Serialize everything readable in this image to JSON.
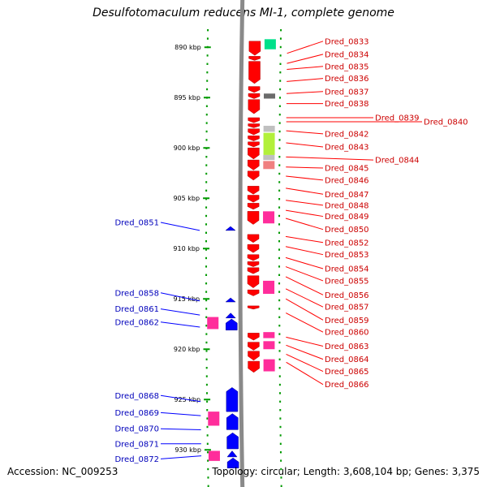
{
  "title": "Desulfotomaculum reducens MI-1, complete genome",
  "footer": {
    "accession": "Accession: NC_009253",
    "summary": "Topology: circular; Length: 3,608,104 bp; Genes: 3,375"
  },
  "colors": {
    "forward_strand": "#ff0000",
    "reverse_strand": "#0000ff",
    "forward_label": "#cc0000",
    "reverse_label": "#0000bb",
    "tick": "#009900",
    "backbone": "#8a8a8a",
    "feature_magenta": "#ff2d9b",
    "feature_green": "#00e08a",
    "feature_lime": "#b2f03a",
    "feature_gray": "#6b6b6b",
    "feature_silver": "#c0c0c0",
    "feature_pink": "#f08080"
  },
  "chart_data": {
    "type": "genome-map",
    "unit": "kbp",
    "range_kbp": [
      886.4,
      933
    ],
    "ticks": [
      {
        "kbp": 890,
        "label": "890 kbp"
      },
      {
        "kbp": 895,
        "label": "895 kbp"
      },
      {
        "kbp": 900,
        "label": "900 kbp"
      },
      {
        "kbp": 905,
        "label": "905 kbp"
      },
      {
        "kbp": 910,
        "label": "910 kbp"
      },
      {
        "kbp": 915,
        "label": "915 kbp"
      },
      {
        "kbp": 920,
        "label": "920 kbp"
      },
      {
        "kbp": 925,
        "label": "925 kbp"
      },
      {
        "kbp": 930,
        "label": "930 kbp"
      }
    ],
    "forward_genes": [
      {
        "name": "Dred_0833",
        "kbp": 890.6,
        "label_kbp": 889.4
      },
      {
        "name": "Dred_0834",
        "kbp": 891.6,
        "label_kbp": 890.7
      },
      {
        "name": "Dred_0835",
        "kbp": 892.2,
        "label_kbp": 891.9
      },
      {
        "name": "Dred_0836",
        "kbp": 893.4,
        "label_kbp": 893.1
      },
      {
        "name": "Dred_0837",
        "kbp": 894.6,
        "label_kbp": 894.4
      },
      {
        "name": "Dred_0838",
        "kbp": 895.6,
        "label_kbp": 895.6
      },
      {
        "name": "Dred_0839",
        "kbp": 897.0,
        "label_kbp": 897.0
      },
      {
        "name": "Dred_0840",
        "kbp": 897.4,
        "label_kbp": 897.4
      },
      {
        "name": "Dred_0842",
        "kbp": 898.3,
        "label_kbp": 898.6
      },
      {
        "name": "Dred_0843",
        "kbp": 899.5,
        "label_kbp": 899.9
      },
      {
        "name": "Dred_0844",
        "kbp": 900.9,
        "label_kbp": 901.2
      },
      {
        "name": "Dred_0845",
        "kbp": 901.9,
        "label_kbp": 902.0
      },
      {
        "name": "Dred_0846",
        "kbp": 902.8,
        "label_kbp": 903.2
      },
      {
        "name": "Dred_0847",
        "kbp": 904.0,
        "label_kbp": 904.6
      },
      {
        "name": "Dred_0848",
        "kbp": 905.2,
        "label_kbp": 905.7
      },
      {
        "name": "Dred_0849",
        "kbp": 906.2,
        "label_kbp": 906.8
      },
      {
        "name": "Dred_0850",
        "kbp": 907.0,
        "label_kbp": 908.1
      },
      {
        "name": "Dred_0852",
        "kbp": 908.8,
        "label_kbp": 909.4
      },
      {
        "name": "Dred_0853",
        "kbp": 909.8,
        "label_kbp": 910.6
      },
      {
        "name": "Dred_0854",
        "kbp": 910.9,
        "label_kbp": 912.0
      },
      {
        "name": "Dred_0855",
        "kbp": 911.8,
        "label_kbp": 913.2
      },
      {
        "name": "Dred_0856",
        "kbp": 912.8,
        "label_kbp": 914.6
      },
      {
        "name": "Dred_0857",
        "kbp": 914.0,
        "label_kbp": 915.8
      },
      {
        "name": "Dred_0859",
        "kbp": 915.0,
        "label_kbp": 917.1
      },
      {
        "name": "Dred_0860",
        "kbp": 916.4,
        "label_kbp": 918.3
      },
      {
        "name": "Dred_0863",
        "kbp": 918.8,
        "label_kbp": 919.7
      },
      {
        "name": "Dred_0864",
        "kbp": 919.6,
        "label_kbp": 921.0
      },
      {
        "name": "Dred_0865",
        "kbp": 920.5,
        "label_kbp": 922.2
      },
      {
        "name": "Dred_0866",
        "kbp": 921.3,
        "label_kbp": 923.5
      }
    ],
    "reverse_genes": [
      {
        "name": "Dred_0851",
        "kbp": 908.2,
        "label_kbp": 907.4
      },
      {
        "name": "Dred_0858",
        "kbp": 915.2,
        "label_kbp": 914.4
      },
      {
        "name": "Dred_0861",
        "kbp": 916.6,
        "label_kbp": 916.0
      },
      {
        "name": "Dred_0862",
        "kbp": 917.8,
        "label_kbp": 917.3
      },
      {
        "name": "Dred_0868",
        "kbp": 925.2,
        "label_kbp": 924.6
      },
      {
        "name": "Dred_0869",
        "kbp": 926.6,
        "label_kbp": 926.3
      },
      {
        "name": "Dred_0870",
        "kbp": 928.0,
        "label_kbp": 927.9
      },
      {
        "name": "Dred_0871",
        "kbp": 929.4,
        "label_kbp": 929.4
      },
      {
        "name": "Dred_0872",
        "kbp": 930.6,
        "label_kbp": 930.9
      }
    ],
    "forward_blocks": [
      {
        "kbp": 889.4,
        "len": 1.4
      },
      {
        "kbp": 890.9,
        "len": 0.4
      },
      {
        "kbp": 891.4,
        "len": 2.2
      },
      {
        "kbp": 893.9,
        "len": 0.6
      },
      {
        "kbp": 894.6,
        "len": 0.5
      },
      {
        "kbp": 895.2,
        "len": 1.4
      },
      {
        "kbp": 897.0,
        "len": 0.5
      },
      {
        "kbp": 897.6,
        "len": 0.4
      },
      {
        "kbp": 898.1,
        "len": 0.6
      },
      {
        "kbp": 898.8,
        "len": 0.5
      },
      {
        "kbp": 899.4,
        "len": 0.5
      },
      {
        "kbp": 900.0,
        "len": 1.1
      },
      {
        "kbp": 901.2,
        "len": 1.0
      },
      {
        "kbp": 902.3,
        "len": 0.9
      },
      {
        "kbp": 903.8,
        "len": 0.8
      },
      {
        "kbp": 904.7,
        "len": 0.7
      },
      {
        "kbp": 905.5,
        "len": 0.6
      },
      {
        "kbp": 906.3,
        "len": 1.3
      },
      {
        "kbp": 908.6,
        "len": 0.8
      },
      {
        "kbp": 909.6,
        "len": 0.8
      },
      {
        "kbp": 910.6,
        "len": 0.6
      },
      {
        "kbp": 911.3,
        "len": 0.5
      },
      {
        "kbp": 911.9,
        "len": 0.6
      },
      {
        "kbp": 912.7,
        "len": 1.2
      },
      {
        "kbp": 914.1,
        "len": 0.6
      },
      {
        "kbp": 915.7,
        "len": 0.3
      },
      {
        "kbp": 918.4,
        "len": 0.7
      },
      {
        "kbp": 919.3,
        "len": 0.8
      },
      {
        "kbp": 920.2,
        "len": 0.9
      },
      {
        "kbp": 921.2,
        "len": 1.1
      }
    ],
    "other_features": [
      {
        "color": "feature_green",
        "track": "forward_outer",
        "kbp": 889.2,
        "len": 1.0
      },
      {
        "color": "feature_gray",
        "track": "forward_outer",
        "kbp": 894.6,
        "len": 0.5
      },
      {
        "color": "feature_silver",
        "track": "forward_outer",
        "kbp": 897.8,
        "len": 0.6
      },
      {
        "color": "feature_lime",
        "track": "forward_outer",
        "kbp": 898.5,
        "len": 2.2
      },
      {
        "color": "feature_silver",
        "track": "forward_outer",
        "kbp": 900.7,
        "len": 0.5
      },
      {
        "color": "feature_pink",
        "track": "forward_outer",
        "kbp": 901.3,
        "len": 0.8
      },
      {
        "color": "feature_magenta",
        "track": "forward_outer",
        "kbp": 906.3,
        "len": 1.2
      },
      {
        "color": "feature_magenta",
        "track": "forward_outer",
        "kbp": 913.2,
        "len": 1.3
      },
      {
        "color": "feature_magenta",
        "track": "forward_outer",
        "kbp": 918.3,
        "len": 0.6
      },
      {
        "color": "feature_magenta",
        "track": "forward_outer",
        "kbp": 919.2,
        "len": 0.8
      },
      {
        "color": "feature_magenta",
        "track": "forward_outer",
        "kbp": 921.0,
        "len": 1.2
      },
      {
        "color": "feature_magenta",
        "track": "reverse_outer",
        "kbp": 916.8,
        "len": 1.2
      },
      {
        "color": "feature_magenta",
        "track": "reverse_outer",
        "kbp": 926.2,
        "len": 1.4
      },
      {
        "color": "feature_magenta",
        "track": "reverse_outer",
        "kbp": 930.1,
        "len": 1.0
      }
    ],
    "reverse_blocks": [
      {
        "kbp": 907.8,
        "len": 0.4
      },
      {
        "kbp": 914.9,
        "len": 0.4
      },
      {
        "kbp": 916.4,
        "len": 0.5
      },
      {
        "kbp": 917.0,
        "len": 1.1
      },
      {
        "kbp": 923.8,
        "len": 2.4
      },
      {
        "kbp": 926.4,
        "len": 1.6
      },
      {
        "kbp": 928.3,
        "len": 1.6
      },
      {
        "kbp": 930.1,
        "len": 0.6
      },
      {
        "kbp": 930.8,
        "len": 1.0
      }
    ]
  }
}
